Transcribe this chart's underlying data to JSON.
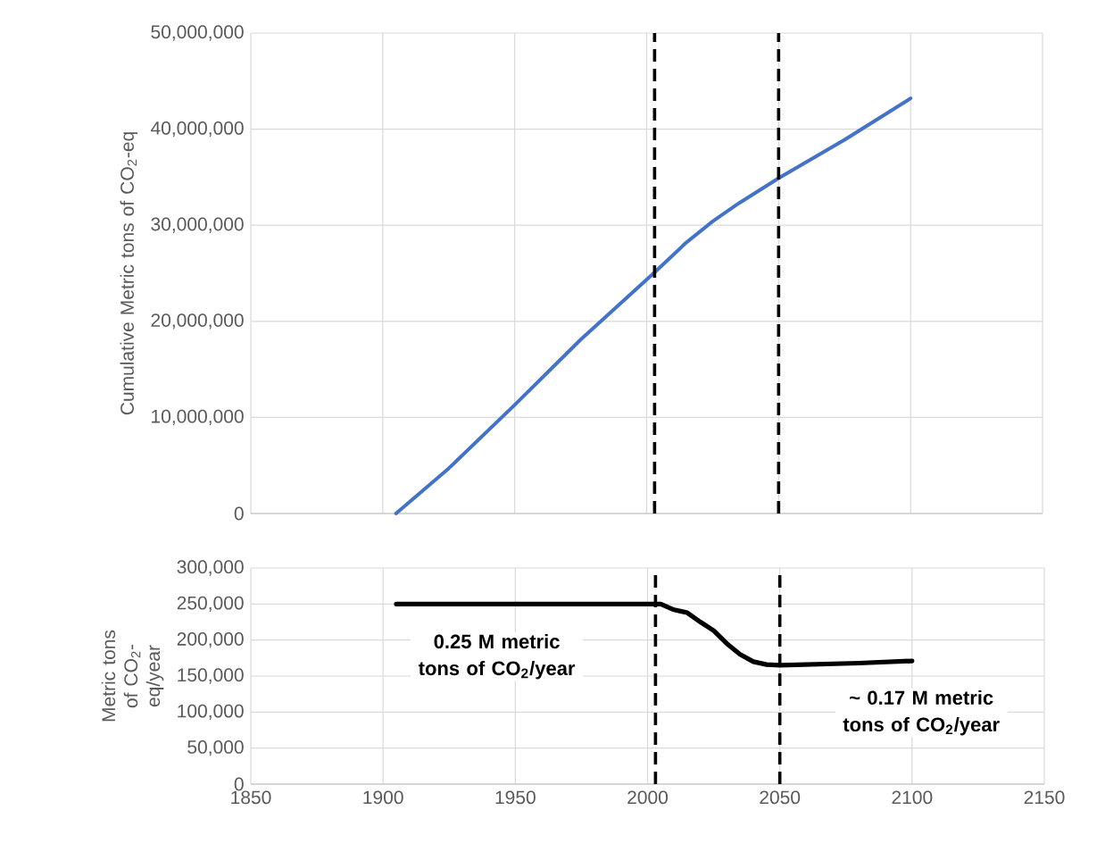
{
  "chart_data": [
    {
      "type": "line",
      "ylabel": "Cumulative Metric tons of CO$_{2}$-eq",
      "x": [
        1905,
        1925,
        1950,
        1975,
        2003,
        2015,
        2025,
        2035,
        2050,
        2075,
        2100
      ],
      "series": [
        {
          "color": "#4472c4",
          "values": [
            0,
            4700000,
            11300000,
            18100000,
            25100000,
            28200000,
            30400000,
            32300000,
            34900000,
            38900000,
            43200000
          ]
        }
      ],
      "xlim": [
        1850,
        2150
      ],
      "xticks": [
        1850,
        1900,
        1950,
        2000,
        2050,
        2100,
        2150
      ],
      "ylim": [
        0,
        50000000
      ],
      "yticks": [
        {
          "value": 0,
          "label": "0"
        },
        {
          "value": 10000000,
          "label": "10,000,000"
        },
        {
          "value": 20000000,
          "label": "20,000,000"
        },
        {
          "value": 30000000,
          "label": "30,000,000"
        },
        {
          "value": 40000000,
          "label": "40,000,000"
        },
        {
          "value": 50000000,
          "label": "50,000,000"
        }
      ],
      "tick_labels": "y",
      "grid": true,
      "marker": "none",
      "ref_lines": [
        {
          "axis": "x",
          "value": 2003,
          "color": "#000000",
          "line_style": "dashed"
        },
        {
          "axis": "x",
          "value": 2050,
          "color": "#000000",
          "line_style": "dashed"
        }
      ]
    },
    {
      "type": "line",
      "ylabel": "Metric tons of CO$_{2}$-eq/year",
      "x": [
        1905,
        1950,
        2000,
        2005,
        2010,
        2015,
        2020,
        2025,
        2030,
        2035,
        2040,
        2045,
        2050,
        2060,
        2080,
        2100
      ],
      "series": [
        {
          "color": "#000000",
          "values": [
            250000,
            250000,
            250000,
            250000,
            242000,
            238000,
            225000,
            213000,
            195000,
            180000,
            170000,
            166000,
            165000,
            166000,
            168000,
            171000
          ]
        }
      ],
      "xlim": [
        1850,
        2150
      ],
      "xticks": [
        1850,
        1900,
        1950,
        2000,
        2050,
        2100,
        2150
      ],
      "ylim": [
        0,
        300000
      ],
      "yticks": [
        {
          "value": 0,
          "label": "0"
        },
        {
          "value": 50000,
          "label": "50,000"
        },
        {
          "value": 100000,
          "label": "100,000"
        },
        {
          "value": 150000,
          "label": "150,000"
        },
        {
          "value": 200000,
          "label": "200,000"
        },
        {
          "value": 250000,
          "label": "250,000"
        },
        {
          "value": 300000,
          "label": "300,000"
        }
      ],
      "grid": true,
      "marker": "none",
      "annotations": [
        "0.25 M metric tons of CO$_{2}$/year",
        "~ 0.17 M metric tons of CO$_{2}$/year"
      ],
      "ref_lines": [
        {
          "axis": "x",
          "value": 2003,
          "color": "#000000",
          "line_style": "dashed"
        },
        {
          "axis": "x",
          "value": 2050,
          "color": "#000000",
          "line_style": "dashed"
        }
      ]
    }
  ]
}
